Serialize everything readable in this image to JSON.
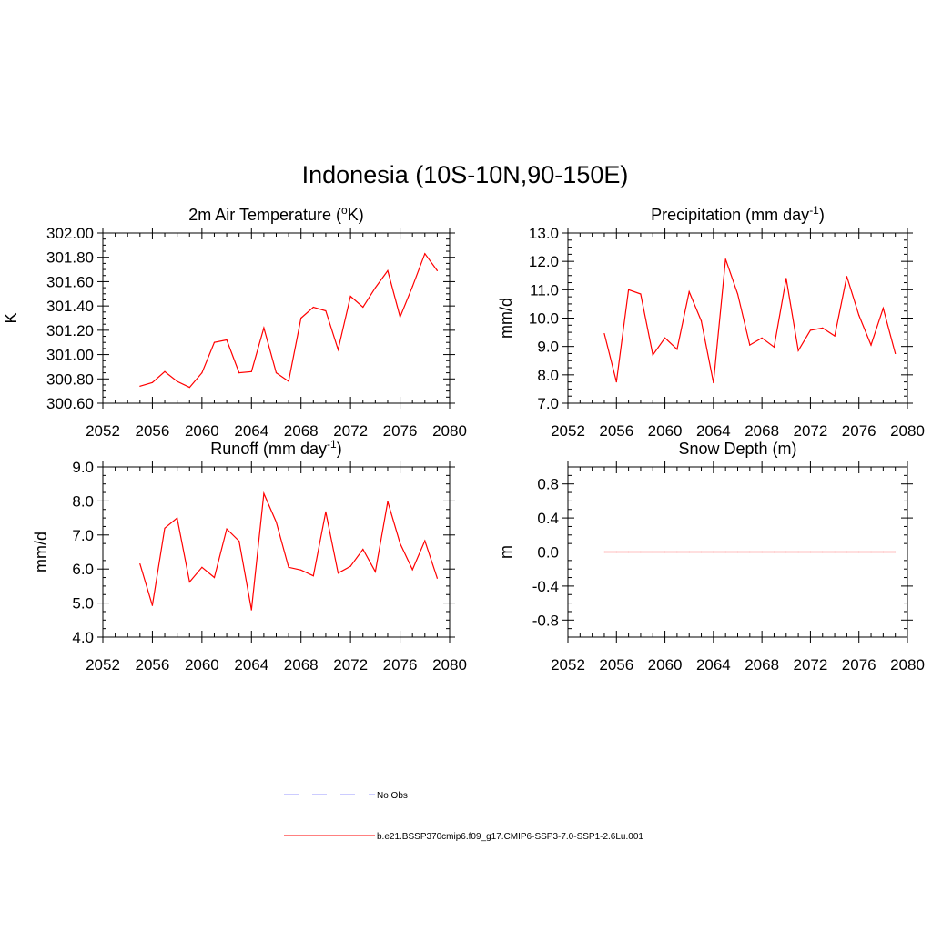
{
  "figure": {
    "title": "Indonesia (10S-10N,90-150E)"
  },
  "colors": {
    "model_line": "#ff0000",
    "obs_line": "#9999ff",
    "axis": "#000000"
  },
  "chart_data": [
    {
      "type": "line",
      "title": "2m Air Temperature (",
      "title_sup_prefix": "o",
      "title_suffix": "K)",
      "ylabel": "K",
      "xlim": [
        2052,
        2080
      ],
      "ylim": [
        300.6,
        302.0
      ],
      "xticks": [
        2052,
        2056,
        2060,
        2064,
        2068,
        2072,
        2076,
        2080
      ],
      "yticks": [
        300.6,
        300.8,
        301.0,
        301.2,
        301.4,
        301.6,
        301.8,
        302.0
      ],
      "ytick_labels": [
        "300.60",
        "300.80",
        "301.00",
        "301.20",
        "301.40",
        "301.60",
        "301.80",
        "302.00"
      ],
      "series": [
        {
          "name": "b.e21.BSSP370cmip6.f09_g17.CMIP6-SSP3-7.0-SSP1-2.6Lu.001",
          "x": [
            2055,
            2056,
            2057,
            2058,
            2059,
            2060,
            2061,
            2062,
            2063,
            2064,
            2065,
            2066,
            2067,
            2068,
            2069,
            2070,
            2071,
            2072,
            2073,
            2074,
            2075,
            2076,
            2077,
            2078,
            2079
          ],
          "values": [
            300.74,
            300.77,
            300.86,
            300.78,
            300.73,
            300.85,
            301.1,
            301.12,
            300.85,
            300.86,
            301.22,
            300.85,
            300.78,
            301.3,
            301.39,
            301.36,
            301.04,
            301.48,
            301.39,
            301.55,
            301.69,
            301.31,
            301.56,
            301.83,
            301.69
          ]
        }
      ]
    },
    {
      "type": "line",
      "title": "Precipitation (mm day",
      "title_sup": "-1",
      "title_suffix": ")",
      "ylabel": "mm/d",
      "xlim": [
        2052,
        2080
      ],
      "ylim": [
        7.0,
        13.0
      ],
      "xticks": [
        2052,
        2056,
        2060,
        2064,
        2068,
        2072,
        2076,
        2080
      ],
      "yticks": [
        7.0,
        8.0,
        9.0,
        10.0,
        11.0,
        12.0,
        13.0
      ],
      "ytick_labels": [
        "7.0",
        "8.0",
        "9.0",
        "10.0",
        "11.0",
        "12.0",
        "13.0"
      ],
      "series": [
        {
          "name": "b.e21.BSSP370cmip6.f09_g17.CMIP6-SSP3-7.0-SSP1-2.6Lu.001",
          "x": [
            2055,
            2056,
            2057,
            2058,
            2059,
            2060,
            2061,
            2062,
            2063,
            2064,
            2065,
            2066,
            2067,
            2068,
            2069,
            2070,
            2071,
            2072,
            2073,
            2074,
            2075,
            2076,
            2077,
            2078,
            2079
          ],
          "values": [
            9.45,
            7.75,
            11.0,
            10.85,
            8.7,
            9.3,
            8.9,
            10.93,
            9.9,
            7.72,
            12.08,
            10.85,
            9.05,
            9.3,
            8.98,
            11.4,
            8.85,
            9.57,
            9.65,
            9.37,
            11.47,
            10.1,
            9.05,
            10.35,
            8.75
          ]
        }
      ]
    },
    {
      "type": "line",
      "title": "Runoff (mm day",
      "title_sup": "-1",
      "title_suffix": ")",
      "ylabel": "mm/d",
      "xlim": [
        2052,
        2080
      ],
      "ylim": [
        4.0,
        9.0
      ],
      "xticks": [
        2052,
        2056,
        2060,
        2064,
        2068,
        2072,
        2076,
        2080
      ],
      "yticks": [
        4.0,
        5.0,
        6.0,
        7.0,
        8.0,
        9.0
      ],
      "ytick_labels": [
        "4.0",
        "5.0",
        "6.0",
        "7.0",
        "8.0",
        "9.0"
      ],
      "series": [
        {
          "name": "b.e21.BSSP370cmip6.f09_g17.CMIP6-SSP3-7.0-SSP1-2.6Lu.001",
          "x": [
            2055,
            2056,
            2057,
            2058,
            2059,
            2060,
            2061,
            2062,
            2063,
            2064,
            2065,
            2066,
            2067,
            2068,
            2069,
            2070,
            2071,
            2072,
            2073,
            2074,
            2075,
            2076,
            2077,
            2078,
            2079
          ],
          "values": [
            6.15,
            4.93,
            7.2,
            7.5,
            5.62,
            6.05,
            5.75,
            7.18,
            6.82,
            4.8,
            8.22,
            7.38,
            6.05,
            5.97,
            5.8,
            7.68,
            5.88,
            6.08,
            6.58,
            5.92,
            7.98,
            6.75,
            5.98,
            6.83,
            5.73
          ]
        }
      ]
    },
    {
      "type": "line",
      "title": "Snow Depth (m)",
      "ylabel": "m",
      "xlim": [
        2052,
        2080
      ],
      "ylim": [
        -1.0,
        1.0
      ],
      "xticks": [
        2052,
        2056,
        2060,
        2064,
        2068,
        2072,
        2076,
        2080
      ],
      "yticks": [
        -0.8,
        -0.4,
        0.0,
        0.4,
        0.8
      ],
      "ytick_labels": [
        "-0.8",
        "-0.4",
        "0.0",
        "0.4",
        "0.8"
      ],
      "series": [
        {
          "name": "b.e21.BSSP370cmip6.f09_g17.CMIP6-SSP3-7.0-SSP1-2.6Lu.001",
          "x": [
            2055,
            2056,
            2057,
            2058,
            2059,
            2060,
            2061,
            2062,
            2063,
            2064,
            2065,
            2066,
            2067,
            2068,
            2069,
            2070,
            2071,
            2072,
            2073,
            2074,
            2075,
            2076,
            2077,
            2078,
            2079
          ],
          "values": [
            0,
            0,
            0,
            0,
            0,
            0,
            0,
            0,
            0,
            0,
            0,
            0,
            0,
            0,
            0,
            0,
            0,
            0,
            0,
            0,
            0,
            0,
            0,
            0,
            0
          ]
        }
      ]
    }
  ],
  "legend": {
    "items": [
      {
        "label": "No Obs",
        "style": "dashed",
        "color": "#9999ff"
      },
      {
        "label": "b.e21.BSSP370cmip6.f09_g17.CMIP6-SSP3-7.0-SSP1-2.6Lu.001",
        "style": "solid",
        "color": "#ff0000"
      }
    ]
  }
}
